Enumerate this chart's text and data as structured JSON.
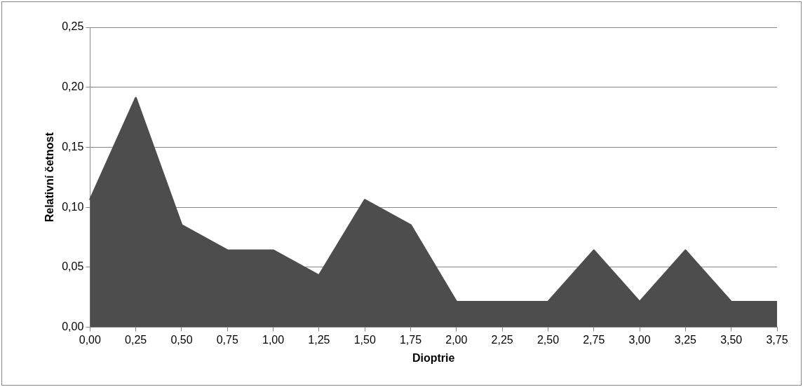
{
  "chart_data": {
    "type": "area",
    "xlabel": "Dioptrie",
    "ylabel": "Relativní četnost",
    "categories": [
      "0,00",
      "0,25",
      "0,50",
      "0,75",
      "1,00",
      "1,25",
      "1,50",
      "1,75",
      "2,00",
      "2,25",
      "2,50",
      "2,75",
      "3,00",
      "3,25",
      "3,50",
      "3,75"
    ],
    "series": [
      {
        "color": "#4d4d4d",
        "values": [
          0.106,
          0.191,
          0.085,
          0.064,
          0.064,
          0.043,
          0.106,
          0.085,
          0.021,
          0.021,
          0.021,
          0.064,
          0.021,
          0.064,
          0.021,
          0.021
        ]
      }
    ],
    "ylim": [
      0,
      0.25
    ],
    "yticks": [
      {
        "value": 0,
        "label": "0,00"
      },
      {
        "value": 0.05,
        "label": "0,05"
      },
      {
        "value": 0.1,
        "label": "0,10"
      },
      {
        "value": 0.15,
        "label": "0,15"
      },
      {
        "value": 0.2,
        "label": "0,20"
      },
      {
        "value": 0.25,
        "label": "0,25"
      }
    ],
    "grid": "y",
    "legend": false
  }
}
